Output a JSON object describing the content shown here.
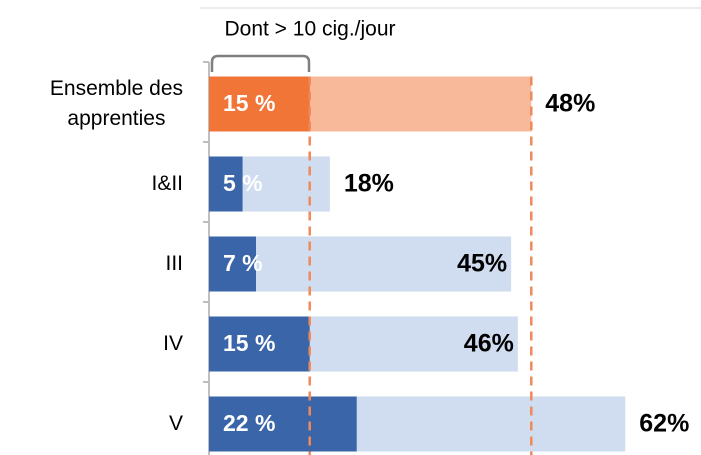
{
  "chart_data": {
    "type": "bar",
    "orientation": "horizontal",
    "categories": [
      "Ensemble des\napprenties",
      "I&II",
      "III",
      "IV",
      "V"
    ],
    "series": [
      {
        "values": [
          48,
          18,
          45,
          46,
          62
        ],
        "value_labels": [
          "48%",
          "18%",
          "45%",
          "46%",
          "62%"
        ],
        "colors": [
          "#f8b89a",
          "#d0dcf0",
          "#d0dcf0",
          "#d0dcf0",
          "#d0dcf0"
        ]
      },
      {
        "name": "Dont > 10 cig./jour",
        "values": [
          15,
          5,
          7,
          15,
          22
        ],
        "value_labels": [
          "15 %",
          "5 %",
          "7 %",
          "15 %",
          "22 %"
        ],
        "colors": [
          "#f07537",
          "#3a65a8",
          "#3a65a8",
          "#3a65a8",
          "#3a65a8"
        ]
      }
    ],
    "reference_lines_color": "#f08a5a",
    "xlim": [
      0,
      70
    ]
  }
}
